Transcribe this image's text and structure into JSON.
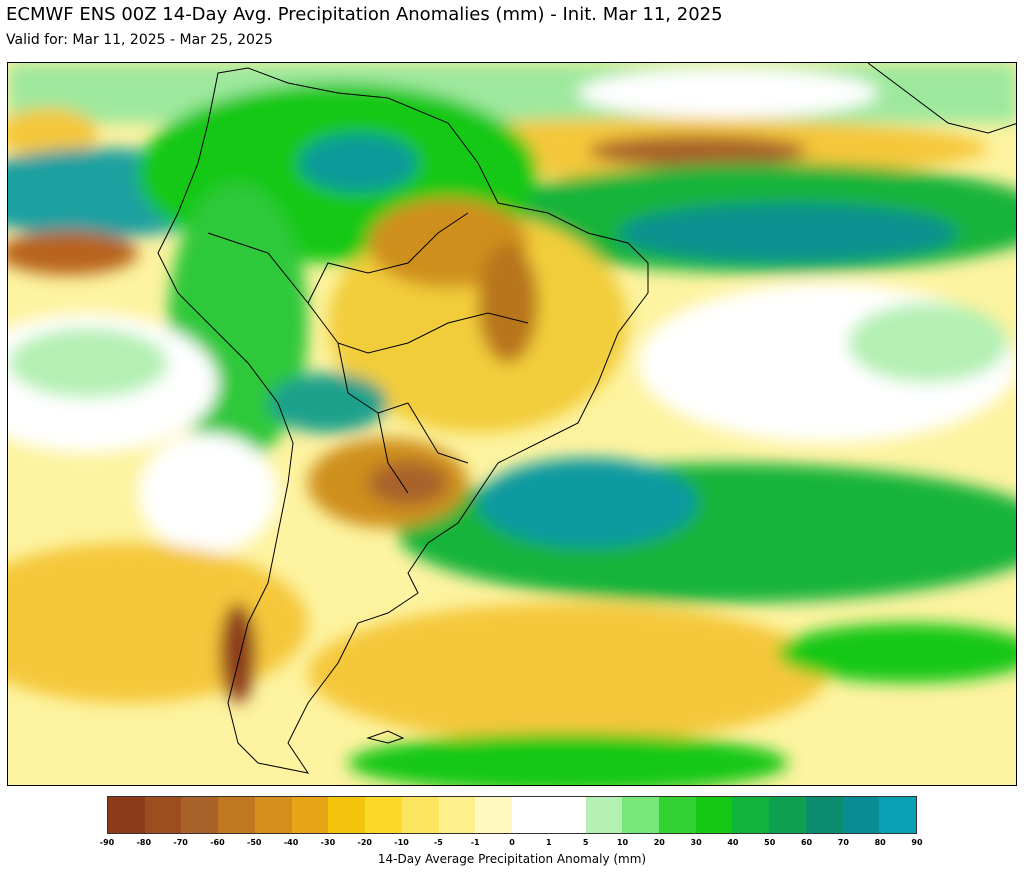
{
  "header": {
    "title": "ECMWF ENS 00Z 14-Day Avg. Precipitation Anomalies (mm) - Init. Mar 11, 2025",
    "subtitle": "Valid for: Mar 11, 2025 - Mar 25, 2025"
  },
  "map": {
    "region": "South America",
    "variable": "14-Day Average Precipitation Anomaly",
    "units": "mm"
  },
  "colorbar": {
    "label": "14-Day Average Precipitation Anomaly (mm)",
    "ticks": [
      "-90",
      "-80",
      "-70",
      "-60",
      "-50",
      "-40",
      "-30",
      "-20",
      "-10",
      "-5",
      "-1",
      "0",
      "1",
      "5",
      "10",
      "20",
      "30",
      "40",
      "50",
      "60",
      "70",
      "80",
      "90"
    ],
    "colors": [
      "#8b3a1a",
      "#9c4e1f",
      "#a9622a",
      "#c07820",
      "#d58e1c",
      "#e6a416",
      "#f5c40c",
      "#fbd92a",
      "#fbe55e",
      "#fdf08c",
      "#fff8bf",
      "#ffffff",
      "#ffffff",
      "#b4f0b4",
      "#78e678",
      "#32d232",
      "#14c814",
      "#10b43c",
      "#0ea050",
      "#0c8c6e",
      "#0a8c96",
      "#0aa0b4"
    ]
  }
}
